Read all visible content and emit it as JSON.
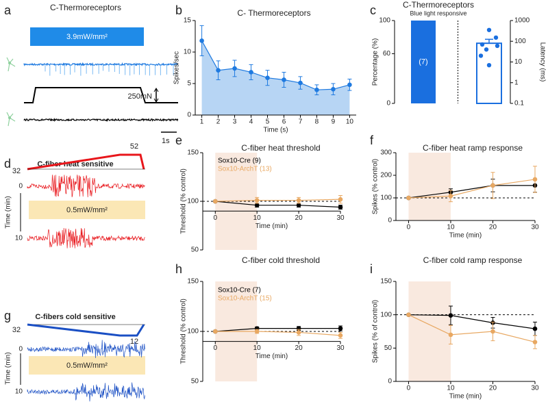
{
  "panel_labels": [
    "a",
    "b",
    "c",
    "d",
    "e",
    "f",
    "g",
    "h",
    "i"
  ],
  "diagrams": {
    "a": {
      "title": "C-Thermoreceptors",
      "light": "3.9mW/mm²",
      "force": "250mN",
      "scale": "1s"
    },
    "d": {
      "title": "C-fiber heat sensitive",
      "start": "32",
      "end": "52",
      "light": "0.5mW/mm²",
      "axis": "Time (min)",
      "t0": "0",
      "t1": "10"
    },
    "g": {
      "title": "C-fibers cold sensitive",
      "start": "32",
      "end": "12",
      "light": "0.5mW/mm²",
      "axis": "Time (min)",
      "t0": "0",
      "t1": "10"
    }
  },
  "chart_data": [
    {
      "type": "line",
      "title": "C- Thermoreceptors",
      "xlabel": "Time (s)",
      "ylabel": "Spikes/sec",
      "x": [
        1,
        2,
        3,
        4,
        5,
        6,
        7,
        8,
        9,
        10
      ],
      "series": [
        {
          "color": "#1f7ae0",
          "fill": "#b7d5f4",
          "values": [
            11.8,
            7.1,
            7.4,
            6.8,
            5.9,
            5.6,
            5.1,
            4.0,
            4.1,
            4.8
          ],
          "errors": [
            2.4,
            1.5,
            1.3,
            1.2,
            1.2,
            1.2,
            1.0,
            0.8,
            0.9,
            0.9
          ]
        }
      ],
      "xlim": [
        0.6,
        10.4
      ],
      "xticks": [
        1,
        2,
        3,
        4,
        5,
        6,
        7,
        8,
        9,
        10
      ],
      "ylim": [
        0,
        15
      ],
      "yticks": [
        0,
        5,
        10,
        15
      ]
    },
    {
      "type": "bar",
      "title": "C-Thermoreceptors",
      "subtitle": "Blue light responsive",
      "ylabel": "Percentage (%)",
      "y2label": "Latency (ms)",
      "bars": [
        {
          "value": 100,
          "label": "(7)",
          "color": "#1a6fdf"
        },
        {
          "value": 80,
          "error": 45,
          "axis": "y2",
          "points": [
            350,
            150,
            70,
            60,
            40,
            20,
            7
          ],
          "color": "#1a6fdf"
        }
      ],
      "ylim": [
        0,
        100
      ],
      "yticks": [
        0,
        60,
        100
      ],
      "y2lim": [
        0.1,
        1000
      ],
      "y2ticks": [
        0.1,
        1,
        10,
        100,
        1000
      ],
      "y2log": true
    },
    {
      "type": "line",
      "title": "C-fiber heat threshold",
      "xlabel": "Time (min)",
      "ylabel": "Threshold (% control)",
      "x": [
        0,
        10,
        20,
        30
      ],
      "series": [
        {
          "name": "Sox10-Cre (9)",
          "color": "#000000",
          "values": [
            100,
            96,
            96,
            94
          ],
          "errors": [
            0,
            2,
            2,
            2
          ]
        },
        {
          "name": "Sox10-ArchT (13)",
          "color": "#e8a862",
          "values": [
            100,
            101,
            101,
            102
          ],
          "errors": [
            0,
            3,
            3,
            4
          ]
        }
      ],
      "xlim": [
        -3,
        30
      ],
      "xticks": [
        0,
        10,
        20,
        30
      ],
      "ylim": [
        50,
        150
      ],
      "yticks": [
        50,
        100,
        150
      ],
      "xaxis_at": 90,
      "shade_x": [
        0,
        10
      ],
      "hline": 100
    },
    {
      "type": "line",
      "title": "C-fiber heat ramp response",
      "xlabel": "Time (min)",
      "ylabel": "Spikes (% control)",
      "x": [
        0,
        10,
        20,
        30
      ],
      "series": [
        {
          "color": "#000000",
          "values": [
            100,
            125,
            155,
            155
          ],
          "errors": [
            0,
            15,
            28,
            30
          ]
        },
        {
          "color": "#e8a862",
          "values": [
            100,
            108,
            155,
            182
          ],
          "errors": [
            0,
            25,
            58,
            58
          ]
        }
      ],
      "xlim": [
        -3,
        30
      ],
      "xticks": [
        0,
        10,
        20,
        30
      ],
      "ylim": [
        0,
        300
      ],
      "yticks": [
        0,
        100,
        200,
        300
      ],
      "shade_x": [
        0,
        10
      ],
      "hline": 100
    },
    {
      "type": "line",
      "title": "C-fiber cold threshold",
      "xlabel": "Time (min)",
      "ylabel": "Threshold (% control)",
      "x": [
        0,
        10,
        20,
        30
      ],
      "series": [
        {
          "name": "Sox10-Cre (7)",
          "color": "#000000",
          "values": [
            100,
            103,
            103,
            103
          ],
          "errors": [
            0,
            1.5,
            2,
            2.5
          ]
        },
        {
          "name": "Sox10-ArchT (15)",
          "color": "#e8a862",
          "values": [
            100,
            100,
            99,
            96
          ],
          "errors": [
            0,
            2,
            3,
            3
          ]
        }
      ],
      "xlim": [
        -3,
        30
      ],
      "xticks": [
        0,
        10,
        20,
        30
      ],
      "ylim": [
        50,
        150
      ],
      "yticks": [
        50,
        100,
        150
      ],
      "xaxis_at": 90,
      "shade_x": [
        0,
        10
      ],
      "hline": 100
    },
    {
      "type": "line",
      "title": "C-fiber cold ramp response",
      "xlabel": "Time (min)",
      "ylabel": "Spikes (% of control)",
      "x": [
        0,
        10,
        20,
        30
      ],
      "series": [
        {
          "color": "#000000",
          "values": [
            100,
            99,
            88,
            79
          ],
          "errors": [
            0,
            14,
            8,
            10
          ]
        },
        {
          "color": "#e8a862",
          "values": [
            100,
            70,
            75,
            59
          ],
          "errors": [
            0,
            14,
            14,
            10
          ]
        }
      ],
      "xlim": [
        -3,
        30
      ],
      "xticks": [
        0,
        10,
        20,
        30
      ],
      "ylim": [
        0,
        150
      ],
      "yticks": [
        0,
        50,
        100,
        150
      ],
      "shade_x": [
        0,
        10
      ],
      "hline": 100
    }
  ]
}
